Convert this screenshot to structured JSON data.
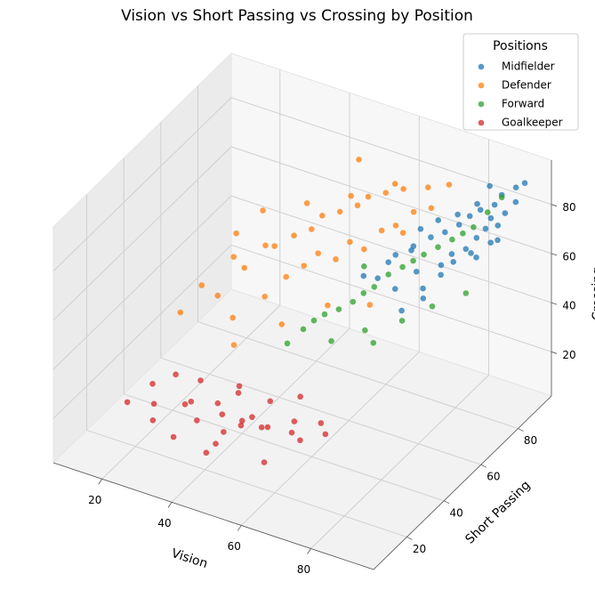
{
  "chart_data": {
    "type": "scatter3d",
    "title": "Vision vs Short Passing vs Crossing by Position",
    "xlabel": "Vision",
    "ylabel": "Short Passing",
    "zlabel": "Crossing",
    "xlim": [
      6,
      98
    ],
    "ylim": [
      2,
      98
    ],
    "zlim": [
      2,
      98
    ],
    "xticks": [
      20,
      40,
      60,
      80
    ],
    "yticks": [
      20,
      40,
      60,
      80
    ],
    "zticks": [
      20,
      40,
      60,
      80
    ],
    "grid": true,
    "legend_title": "Positions",
    "legend_position": "upper right",
    "series": [
      {
        "name": "Midfielder",
        "color": "#1f77b4",
        "x": [
          60,
          65,
          68,
          70,
          72,
          74,
          75,
          77,
          78,
          80,
          80,
          82,
          83,
          84,
          85,
          86,
          87,
          88,
          88,
          90,
          91,
          92,
          72,
          76,
          79,
          81,
          85,
          89,
          66,
          70,
          74,
          78,
          82,
          86,
          90,
          63,
          69,
          84,
          87,
          93
        ],
        "y": [
          68,
          72,
          70,
          75,
          74,
          78,
          72,
          80,
          76,
          82,
          78,
          84,
          80,
          86,
          82,
          85,
          88,
          84,
          90,
          88,
          92,
          90,
          66,
          70,
          74,
          77,
          79,
          86,
          74,
          80,
          82,
          85,
          88,
          80,
          84,
          70,
          78,
          91,
          86,
          93
        ],
        "z": [
          55,
          60,
          52,
          65,
          58,
          70,
          50,
          72,
          62,
          75,
          66,
          78,
          68,
          80,
          72,
          74,
          82,
          70,
          85,
          80,
          88,
          84,
          48,
          56,
          60,
          64,
          68,
          76,
          62,
          70,
          74,
          76,
          80,
          66,
          72,
          54,
          64,
          86,
          78,
          90
        ]
      },
      {
        "name": "Defender",
        "color": "#ff7f0e",
        "x": [
          18,
          22,
          25,
          28,
          30,
          32,
          35,
          36,
          38,
          40,
          42,
          44,
          45,
          46,
          48,
          50,
          52,
          54,
          55,
          56,
          58,
          60,
          62,
          64,
          65,
          66,
          68,
          70,
          72,
          75,
          30,
          40,
          50,
          60,
          45,
          35,
          55,
          65,
          25,
          48
        ],
        "y": [
          48,
          52,
          55,
          58,
          60,
          50,
          62,
          65,
          56,
          68,
          60,
          70,
          64,
          72,
          66,
          74,
          68,
          76,
          70,
          78,
          72,
          80,
          74,
          82,
          76,
          78,
          80,
          84,
          82,
          86,
          70,
          75,
          80,
          85,
          52,
          45,
          58,
          62,
          65,
          88
        ],
        "z": [
          35,
          45,
          40,
          55,
          50,
          38,
          60,
          58,
          45,
          62,
          52,
          65,
          55,
          70,
          60,
          72,
          58,
          75,
          65,
          78,
          62,
          80,
          70,
          82,
          72,
          68,
          76,
          84,
          78,
          86,
          66,
          70,
          74,
          80,
          40,
          32,
          48,
          50,
          58,
          82
        ]
      },
      {
        "name": "Forward",
        "color": "#2ca02c",
        "x": [
          45,
          48,
          50,
          52,
          55,
          58,
          60,
          62,
          65,
          68,
          70,
          72,
          75,
          78,
          80,
          82,
          85,
          88,
          55,
          62,
          70,
          76,
          83,
          66,
          58
        ],
        "y": [
          55,
          58,
          60,
          62,
          64,
          66,
          68,
          70,
          72,
          74,
          76,
          78,
          80,
          82,
          84,
          86,
          88,
          90,
          60,
          65,
          70,
          75,
          80,
          62,
          72
        ],
        "z": [
          30,
          35,
          38,
          40,
          42,
          45,
          48,
          50,
          55,
          58,
          60,
          62,
          65,
          68,
          70,
          72,
          78,
          84,
          32,
          36,
          40,
          45,
          50,
          35,
          55
        ]
      },
      {
        "name": "Goalkeeper",
        "color": "#d62728",
        "x": [
          15,
          20,
          25,
          28,
          30,
          33,
          35,
          38,
          40,
          42,
          45,
          47,
          50,
          52,
          55,
          58,
          60,
          22,
          27,
          32,
          36,
          43,
          48,
          53,
          57,
          62,
          65,
          18,
          40,
          45
        ],
        "y": [
          25,
          30,
          20,
          35,
          28,
          40,
          25,
          33,
          38,
          22,
          30,
          42,
          35,
          28,
          40,
          33,
          45,
          38,
          42,
          18,
          46,
          15,
          25,
          47,
          20,
          30,
          38,
          33,
          30,
          36
        ],
        "z": [
          14,
          12,
          15,
          13,
          18,
          11,
          16,
          14,
          20,
          12,
          15,
          17,
          13,
          19,
          14,
          16,
          12,
          19,
          16,
          13,
          15,
          14,
          22,
          18,
          13,
          17,
          15,
          17,
          10,
          14
        ]
      }
    ]
  }
}
